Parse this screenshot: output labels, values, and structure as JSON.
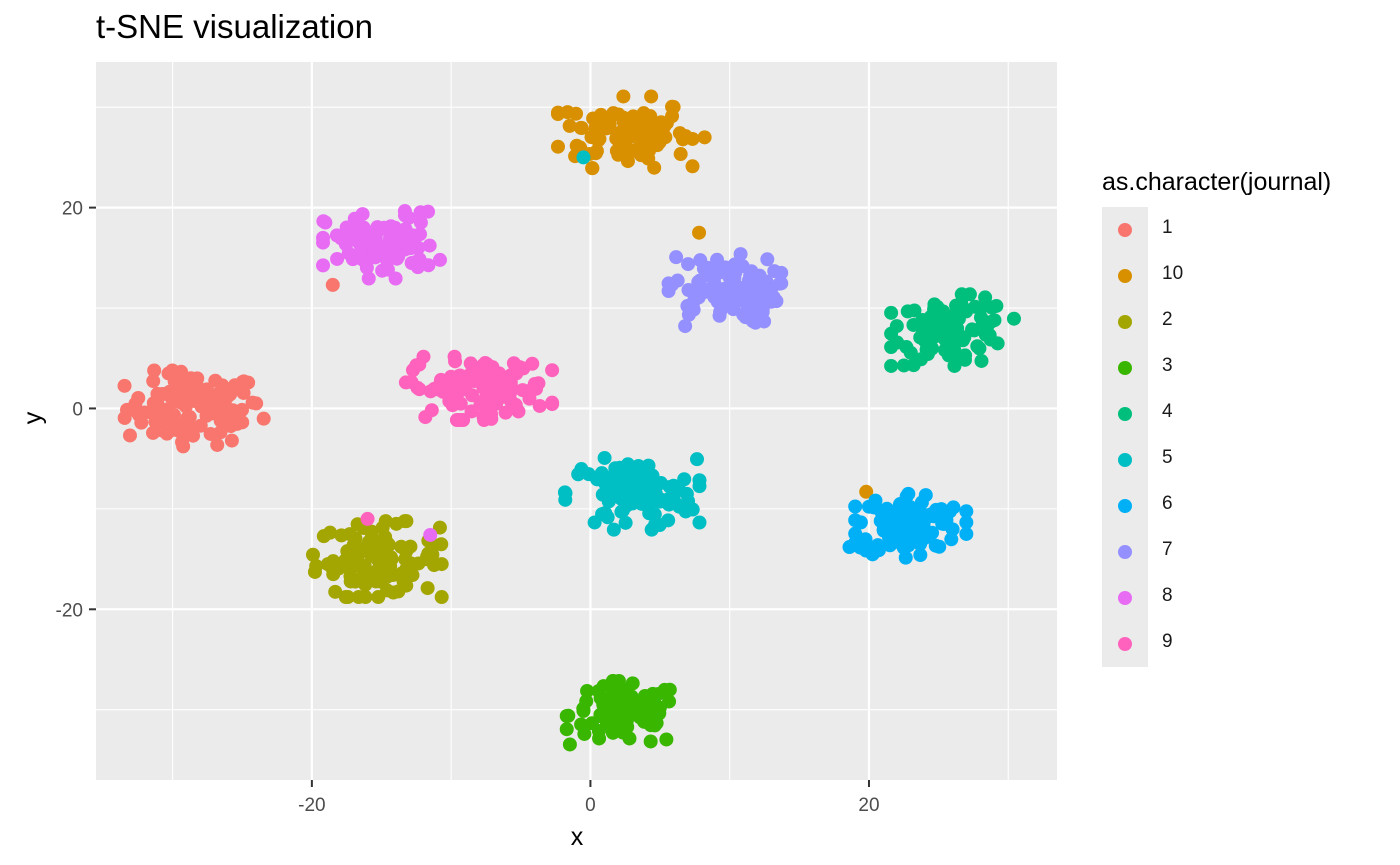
{
  "chart_data": {
    "type": "scatter",
    "title": "t-SNE visualization",
    "xlabel": "x",
    "ylabel": "y",
    "xlim": [
      -35.5,
      33.5
    ],
    "ylim": [
      -37,
      34.5
    ],
    "xticks": [
      -20,
      0,
      20
    ],
    "yticks": [
      -20,
      0,
      20
    ],
    "grid": true,
    "legend_title": "as.character(journal)",
    "legend_position": "right",
    "series": [
      {
        "name": "1",
        "color": "#F8766D",
        "center": [
          -28.5,
          0
        ],
        "spread": [
          2.4,
          1.8
        ],
        "n": 110,
        "extra_points": [
          [
            -18.5,
            12.3
          ],
          [
            -24,
            0.5
          ],
          [
            -32,
            -0.4
          ]
        ]
      },
      {
        "name": "10",
        "color": "#D89000",
        "center": [
          2.5,
          27.5
        ],
        "spread": [
          2.3,
          1.7
        ],
        "n": 100,
        "extra_points": [
          [
            8.2,
            27
          ],
          [
            7.8,
            17.5
          ],
          [
            19.8,
            -8.3
          ]
        ]
      },
      {
        "name": "2",
        "color": "#A3A500",
        "center": [
          -15.3,
          -15
        ],
        "spread": [
          2.2,
          1.8
        ],
        "n": 110,
        "extra_points": []
      },
      {
        "name": "3",
        "color": "#39B600",
        "center": [
          2.5,
          -30.5
        ],
        "spread": [
          2.0,
          1.6
        ],
        "n": 100,
        "extra_points": []
      },
      {
        "name": "4",
        "color": "#00BF7D",
        "center": [
          26,
          7.8
        ],
        "spread": [
          2.1,
          1.7
        ],
        "n": 100,
        "extra_points": [
          [
            22,
            8.2
          ]
        ]
      },
      {
        "name": "5",
        "color": "#00BFC4",
        "center": [
          3,
          -8.5
        ],
        "spread": [
          2.3,
          1.7
        ],
        "n": 105,
        "extra_points": [
          [
            -0.5,
            25
          ]
        ]
      },
      {
        "name": "6",
        "color": "#00B0F6",
        "center": [
          23,
          -11.5
        ],
        "spread": [
          1.9,
          1.6
        ],
        "n": 100,
        "extra_points": [
          [
            19,
            -13.6
          ],
          [
            18.6,
            -13.8
          ]
        ]
      },
      {
        "name": "7",
        "color": "#9590FF",
        "center": [
          9.5,
          11.8
        ],
        "spread": [
          2.0,
          1.7
        ],
        "n": 100,
        "extra_points": [
          [
            6.8,
            8.2
          ]
        ]
      },
      {
        "name": "8",
        "color": "#E76BF3",
        "center": [
          -15,
          16.3
        ],
        "spread": [
          2.0,
          1.6
        ],
        "n": 100,
        "extra_points": [
          [
            -11.5,
            -12.6
          ]
        ]
      },
      {
        "name": "9",
        "color": "#FF62BC",
        "center": [
          -8,
          2
        ],
        "spread": [
          2.5,
          1.5
        ],
        "n": 110,
        "extra_points": [
          [
            -16,
            -11
          ],
          [
            -12.5,
            4.3
          ]
        ]
      }
    ]
  }
}
